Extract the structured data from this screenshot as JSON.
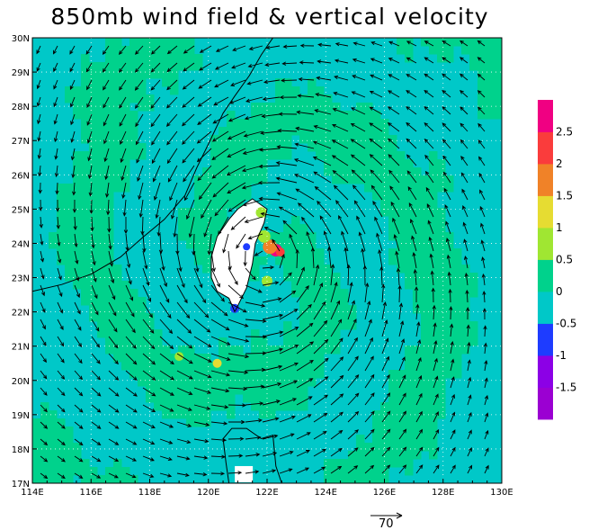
{
  "chart_data": {
    "type": "heatmap",
    "title": "850mb wind field & vertical velocity",
    "x_ticks": [
      "114E",
      "116E",
      "118E",
      "120E",
      "122E",
      "124E",
      "126E",
      "128E",
      "130E"
    ],
    "y_ticks": [
      "30N",
      "29N",
      "28N",
      "27N",
      "26N",
      "25N",
      "24N",
      "23N",
      "22N",
      "21N",
      "20N",
      "19N",
      "18N",
      "17N"
    ],
    "xlim": [
      114,
      130
    ],
    "ylim": [
      17,
      30
    ],
    "vector_field": {
      "center_lon": 121.9,
      "center_lat": 23.6,
      "rotation": "counter-clockwise",
      "reference_vector": "70"
    },
    "colorbar": {
      "tick_labels": [
        "2.5",
        "2",
        "1.5",
        "1",
        "0.5",
        "0",
        "-0.5",
        "-1",
        "-1.5"
      ],
      "colors": [
        "#9b00d2",
        "#8c00e6",
        "#1e3cff",
        "#00c8c8",
        "#00d28c",
        "#a0e632",
        "#e6dc32",
        "#f08228",
        "#fa3c3c",
        "#f00082"
      ]
    },
    "colors": {
      "positive_field": "#00d28c",
      "negative_field": "#00c8c8",
      "land_mask": "#ffffff"
    }
  }
}
